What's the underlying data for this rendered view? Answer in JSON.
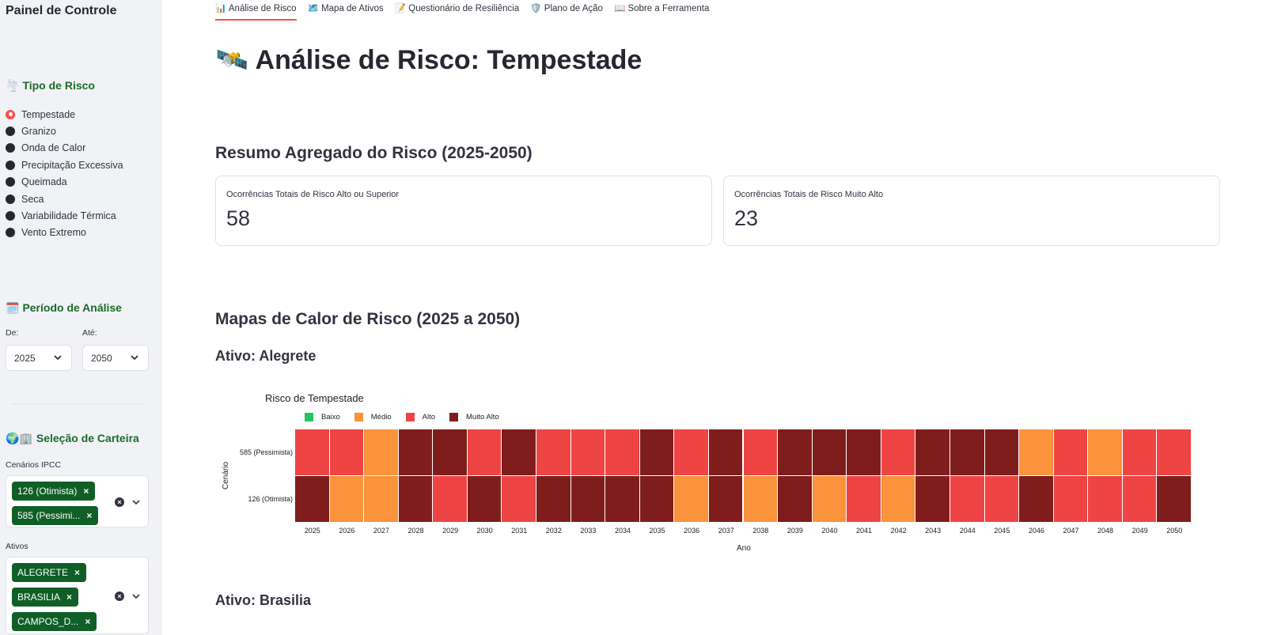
{
  "sidebar": {
    "title": "Painel de Controle",
    "risk_type": {
      "heading": "Tipo de Risco",
      "icon": "🌪️",
      "options": [
        "Tempestade",
        "Granizo",
        "Onda de Calor",
        "Precipitação Excessiva",
        "Queimada",
        "Seca",
        "Variabilidade Térmica",
        "Vento Extremo"
      ],
      "selected": "Tempestade"
    },
    "period": {
      "heading": "Período de Análise",
      "icon": "🗓️",
      "from_label": "De:",
      "from_value": "2025",
      "to_label": "Até:",
      "to_value": "2050"
    },
    "portfolio": {
      "heading": "Seleção de Carteira",
      "icon": "🌍🏢",
      "scenarios_label": "Cenários IPCC",
      "scenarios": [
        "126 (Otimista)",
        "585 (Pessimi..."
      ],
      "assets_label": "Ativos",
      "assets": [
        "ALEGRETE",
        "BRASILIA",
        "CAMPOS_D..."
      ]
    }
  },
  "tabs": [
    {
      "icon": "📊",
      "label": "Análise de Risco"
    },
    {
      "icon": "🗺️",
      "label": "Mapa de Ativos"
    },
    {
      "icon": "📝",
      "label": "Questionário de Resiliência"
    },
    {
      "icon": "🛡️",
      "label": "Plano de Ação"
    },
    {
      "icon": "📖",
      "label": "Sobre a Ferramenta"
    }
  ],
  "main": {
    "title_icon": "🛰️",
    "title": "Análise de Risco: Tempestade",
    "summary_heading": "Resumo Agregado do Risco (2025-2050)",
    "metrics": [
      {
        "label": "Ocorrências Totais de Risco Alto ou Superior",
        "value": "58"
      },
      {
        "label": "Ocorrências Totais de Risco Muito Alto",
        "value": "23"
      }
    ],
    "heatmaps_heading": "Mapas de Calor de Risco (2025 a 2050)",
    "asset1_heading": "Ativo: Alegrete",
    "asset2_heading": "Ativo: Brasilia"
  },
  "colors": {
    "baixo": "#22c55e",
    "medio": "#fb923c",
    "alto": "#ef4444",
    "muito_alto": "#7f1d1d",
    "accent": "#ff4b4b",
    "tag": "#0f5f27"
  },
  "chart_data": {
    "type": "heatmap",
    "title": "Risco de Tempestade",
    "xlabel": "Ano",
    "ylabel": "Cenário",
    "x": [
      "2025",
      "2026",
      "2027",
      "2028",
      "2029",
      "2030",
      "2031",
      "2032",
      "2033",
      "2034",
      "2035",
      "2036",
      "2037",
      "2038",
      "2039",
      "2040",
      "2041",
      "2042",
      "2043",
      "2044",
      "2045",
      "2046",
      "2047",
      "2048",
      "2049",
      "2050"
    ],
    "y": [
      "585 (Pessimista)",
      "126 (Otimista)"
    ],
    "legend": [
      {
        "key": "baixo",
        "label": "Baixo"
      },
      {
        "key": "medio",
        "label": "Médio"
      },
      {
        "key": "alto",
        "label": "Alto"
      },
      {
        "key": "muito_alto",
        "label": "Muito Alto"
      }
    ],
    "values": [
      [
        "alto",
        "alto",
        "medio",
        "muito_alto",
        "muito_alto",
        "alto",
        "muito_alto",
        "alto",
        "alto",
        "alto",
        "muito_alto",
        "alto",
        "muito_alto",
        "alto",
        "muito_alto",
        "muito_alto",
        "muito_alto",
        "alto",
        "muito_alto",
        "muito_alto",
        "muito_alto",
        "medio",
        "alto",
        "medio",
        "alto",
        "alto"
      ],
      [
        "muito_alto",
        "medio",
        "medio",
        "muito_alto",
        "alto",
        "muito_alto",
        "alto",
        "muito_alto",
        "muito_alto",
        "muito_alto",
        "muito_alto",
        "medio",
        "muito_alto",
        "medio",
        "muito_alto",
        "medio",
        "alto",
        "medio",
        "muito_alto",
        "alto",
        "alto",
        "muito_alto",
        "alto",
        "alto",
        "alto",
        "muito_alto"
      ]
    ]
  }
}
